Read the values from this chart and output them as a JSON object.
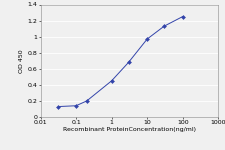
{
  "x": [
    0.032,
    0.1,
    0.2,
    1.0,
    3.0,
    10.0,
    30.0,
    100.0
  ],
  "y": [
    0.13,
    0.14,
    0.2,
    0.45,
    0.68,
    0.97,
    1.13,
    1.25
  ],
  "line_color": "#3344aa",
  "marker": "D",
  "marker_size": 2.0,
  "marker_facecolor": "#3344aa",
  "xlabel": "Recombinant ProteinConcentration(ng/ml)",
  "ylabel": "OD 450",
  "xlim": [
    0.01,
    1000
  ],
  "ylim": [
    0,
    1.4
  ],
  "yticks": [
    0,
    0.2,
    0.4,
    0.6,
    0.8,
    1.0,
    1.2,
    1.4
  ],
  "xticks": [
    0.01,
    0.1,
    1,
    10,
    100,
    1000
  ],
  "xtick_labels": [
    "0.01",
    "0.1",
    "1",
    "10",
    "100",
    "1000"
  ],
  "xlabel_fontsize": 4.5,
  "ylabel_fontsize": 4.5,
  "tick_fontsize": 4.5,
  "background_color": "#f0f0f0",
  "plot_bg_color": "#f0f0f0",
  "grid_color": "#ffffff",
  "line_width": 0.7
}
